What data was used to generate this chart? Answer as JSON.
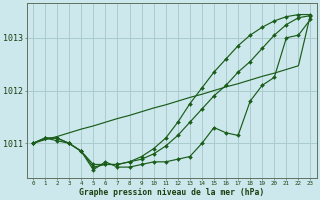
{
  "title": "Graphe pression niveau de la mer (hPa)",
  "background_color": "#cce8ec",
  "grid_color": "#aacccc",
  "line_color": "#1a5c1a",
  "xlim": [
    -0.5,
    23.5
  ],
  "ylim": [
    1010.35,
    1013.65
  ],
  "yticks": [
    1011,
    1012,
    1013
  ],
  "xticks": [
    0,
    1,
    2,
    3,
    4,
    5,
    6,
    7,
    8,
    9,
    10,
    11,
    12,
    13,
    14,
    15,
    16,
    17,
    18,
    19,
    20,
    21,
    22,
    23
  ],
  "series_wavy": [
    1011.0,
    1011.1,
    1011.1,
    1011.0,
    1010.85,
    1010.5,
    1010.65,
    1010.55,
    1010.55,
    1010.6,
    1010.65,
    1010.65,
    1010.7,
    1010.75,
    1011.0,
    1011.3,
    1011.2,
    1011.15,
    1011.8,
    1012.1,
    1012.25,
    1013.0,
    1013.05,
    1013.35
  ],
  "series_smooth": [
    1011.0,
    1011.1,
    1011.05,
    1011.0,
    1010.85,
    1010.6,
    1010.6,
    1010.6,
    1010.65,
    1010.7,
    1010.8,
    1010.95,
    1011.15,
    1011.4,
    1011.65,
    1011.9,
    1012.1,
    1012.35,
    1012.55,
    1012.8,
    1013.05,
    1013.25,
    1013.38,
    1013.42
  ],
  "series_upper": [
    1011.0,
    1011.1,
    1011.1,
    1011.0,
    1010.85,
    1010.55,
    1010.6,
    1010.6,
    1010.65,
    1010.75,
    1010.9,
    1011.1,
    1011.4,
    1011.75,
    1012.05,
    1012.35,
    1012.6,
    1012.85,
    1013.05,
    1013.2,
    1013.32,
    1013.4,
    1013.44,
    1013.44
  ],
  "series_straight": [
    1011.0,
    1011.07,
    1011.13,
    1011.2,
    1011.27,
    1011.33,
    1011.4,
    1011.47,
    1011.53,
    1011.6,
    1011.67,
    1011.73,
    1011.8,
    1011.87,
    1011.93,
    1012.0,
    1012.07,
    1012.13,
    1012.2,
    1012.27,
    1012.33,
    1012.4,
    1012.47,
    1013.44
  ]
}
